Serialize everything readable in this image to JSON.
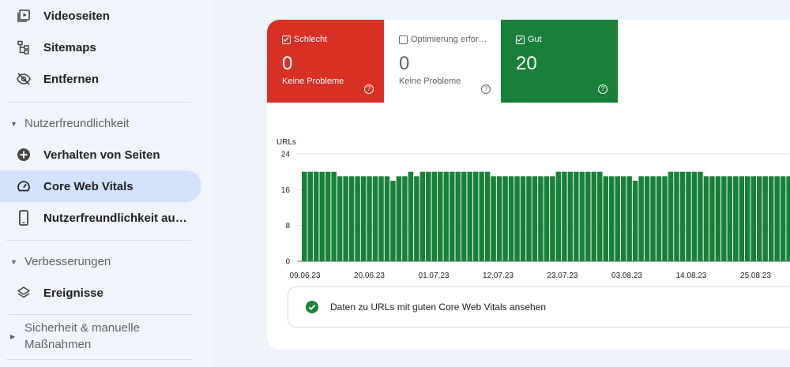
{
  "sidebar": {
    "items": [
      {
        "label": "Videoseiten",
        "icon": "video-pages-icon"
      },
      {
        "label": "Sitemaps",
        "icon": "sitemap-icon"
      },
      {
        "label": "Entfernen",
        "icon": "eye-off-icon"
      },
      {
        "label": "Verhalten von Seiten",
        "icon": "plus-circle-icon"
      },
      {
        "label": "Core Web Vitals",
        "icon": "speedometer-icon",
        "active": true
      },
      {
        "label": "Nutzerfreundlichkeit au…",
        "icon": "phone-icon"
      },
      {
        "label": "Ereignisse",
        "icon": "layers-icon"
      }
    ],
    "sections": [
      {
        "label": "Nutzerfreundlichkeit",
        "expanded": true
      },
      {
        "label": "Verbesserungen",
        "expanded": true
      },
      {
        "label_line1": "Sicherheit & manuelle",
        "label_line2": "Maßnahmen",
        "expanded": false
      }
    ]
  },
  "summary": {
    "bad": {
      "label": "Schlecht",
      "value": "0",
      "sub": "Keine Probleme",
      "color": "#d93025",
      "checked": true
    },
    "needs_improvement": {
      "label": "Optimierung erfor…",
      "value": "0",
      "sub": "Keine Probleme",
      "color": "#ffffff",
      "checked": false
    },
    "good": {
      "label": "Gut",
      "value": "20",
      "color": "#188038",
      "checked": true
    }
  },
  "chart_data": {
    "type": "bar",
    "ylabel": "URLs",
    "ylim": [
      0,
      24
    ],
    "yticks": [
      "0",
      "8",
      "16",
      "24"
    ],
    "xticks": [
      "09.06.23",
      "20.06.23",
      "01.07.23",
      "12.07.23",
      "23.07.23",
      "03.08.23",
      "14.08.23",
      "25.08.23"
    ],
    "bar_color": "#188038",
    "values": [
      20,
      20,
      20,
      20,
      20,
      20,
      19,
      19,
      19,
      19,
      19,
      19,
      19,
      19,
      19,
      18,
      19,
      19,
      20,
      19,
      20,
      20,
      20,
      20,
      20,
      20,
      20,
      20,
      20,
      20,
      20,
      20,
      19,
      19,
      19,
      19,
      19,
      19,
      19,
      19,
      19,
      19,
      19,
      20,
      20,
      20,
      20,
      20,
      20,
      20,
      20,
      19,
      19,
      19,
      19,
      19,
      18,
      19,
      19,
      19,
      19,
      19,
      20,
      20,
      20,
      20,
      20,
      20,
      19,
      19,
      19,
      19,
      19,
      19,
      19,
      19,
      19,
      19,
      19,
      19,
      19,
      19,
      19,
      19,
      19,
      19,
      19,
      19
    ]
  },
  "info": {
    "text": "Daten zu URLs mit guten Core Web Vitals ansehen"
  }
}
